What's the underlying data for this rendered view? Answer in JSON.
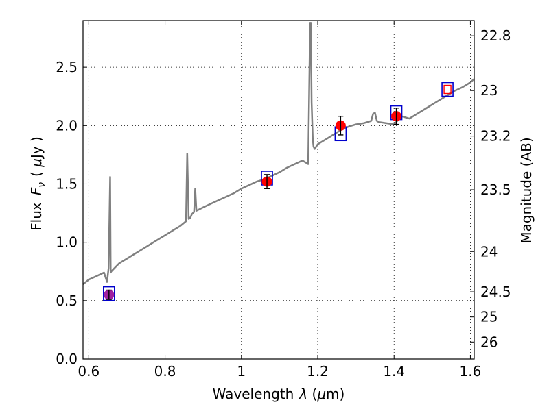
{
  "chart_data": {
    "type": "line",
    "xlabel": "Wavelength",
    "xlabel_symbol": "λ",
    "xlabel_unit_open": " (",
    "xlabel_unit_mu": "μ",
    "xlabel_unit_rest": "m)",
    "ylabel_text": "Flux",
    "ylabel_symbol": "F",
    "ylabel_subscript": "ν",
    "ylabel_unit_open": "( ",
    "ylabel_unit_mu": "μ",
    "ylabel_unit_rest": "Jy )",
    "y2label": "Magnitude (AB)",
    "xlim": [
      0.585,
      1.61
    ],
    "ylim": [
      0.0,
      2.9
    ],
    "x_ticks": [
      0.6,
      0.8,
      1.0,
      1.2,
      1.4,
      1.6
    ],
    "x_tick_labels": [
      "0.6",
      "0.8",
      "1",
      "1.2",
      "1.4",
      "1.6"
    ],
    "y_ticks": [
      0.0,
      0.5,
      1.0,
      1.5,
      2.0,
      2.5
    ],
    "y_tick_labels": [
      "0.0",
      "0.5",
      "1.0",
      "1.5",
      "2.0",
      "2.5"
    ],
    "y2_ticks": [
      {
        "label": "22.8",
        "flux": 2.77
      },
      {
        "label": "23",
        "flux": 2.3
      },
      {
        "label": "23.2",
        "flux": 1.91
      },
      {
        "label": "23.5",
        "flux": 1.45
      },
      {
        "label": "24",
        "flux": 0.92
      },
      {
        "label": "24.5",
        "flux": 0.575
      },
      {
        "label": "25",
        "flux": 0.36
      },
      {
        "label": "26",
        "flux": 0.145
      }
    ],
    "grid": true,
    "series": [
      {
        "kind": "model_spectrum",
        "color": "#808080",
        "x": [
          0.585,
          0.6,
          0.62,
          0.64,
          0.648,
          0.652,
          0.656,
          0.6575,
          0.659,
          0.665,
          0.68,
          0.7,
          0.72,
          0.74,
          0.76,
          0.78,
          0.8,
          0.82,
          0.84,
          0.855,
          0.858,
          0.862,
          0.866,
          0.87,
          0.876,
          0.879,
          0.882,
          0.888,
          0.9,
          0.92,
          0.94,
          0.96,
          0.98,
          1.0,
          1.02,
          1.04,
          1.06,
          1.08,
          1.1,
          1.12,
          1.14,
          1.16,
          1.175,
          1.18,
          1.182,
          1.184,
          1.187,
          1.189,
          1.192,
          1.2,
          1.22,
          1.24,
          1.26,
          1.28,
          1.3,
          1.32,
          1.34,
          1.345,
          1.35,
          1.355,
          1.36,
          1.38,
          1.4,
          1.42,
          1.44,
          1.46,
          1.48,
          1.5,
          1.52,
          1.54,
          1.56,
          1.58,
          1.6,
          1.61
        ],
        "y": [
          0.64,
          0.68,
          0.71,
          0.74,
          0.66,
          0.78,
          1.56,
          0.74,
          0.75,
          0.77,
          0.82,
          0.86,
          0.9,
          0.94,
          0.98,
          1.02,
          1.06,
          1.1,
          1.14,
          1.18,
          1.76,
          1.2,
          1.21,
          1.24,
          1.26,
          1.46,
          1.27,
          1.28,
          1.3,
          1.33,
          1.36,
          1.39,
          1.42,
          1.46,
          1.49,
          1.52,
          1.54,
          1.57,
          1.6,
          1.64,
          1.67,
          1.7,
          1.67,
          2.88,
          2.88,
          2.2,
          1.88,
          1.82,
          1.8,
          1.84,
          1.88,
          1.92,
          1.96,
          1.99,
          2.01,
          2.02,
          2.04,
          2.1,
          2.11,
          2.04,
          2.03,
          2.02,
          2.01,
          2.08,
          2.06,
          2.1,
          2.14,
          2.18,
          2.22,
          2.26,
          2.3,
          2.33,
          2.37,
          2.4
        ]
      },
      {
        "kind": "model_photometry",
        "marker": "square",
        "color": "#0000cc",
        "x": [
          0.653,
          1.067,
          1.26,
          1.406,
          1.54
        ],
        "y": [
          0.56,
          1.55,
          1.93,
          2.11,
          2.31
        ]
      },
      {
        "kind": "observed_photometry",
        "marker": "circle",
        "color": "#ff0000",
        "x": [
          0.653,
          1.067,
          1.26,
          1.406
        ],
        "y": [
          0.55,
          1.52,
          2.0,
          2.08
        ],
        "err": [
          0.04,
          0.06,
          0.08,
          0.07
        ],
        "point_colors": [
          "#a020a0",
          "#ff0000",
          "#ff0000",
          "#ff0000"
        ]
      },
      {
        "kind": "upper_point",
        "marker": "open-square",
        "color": "#ff0000",
        "x": [
          1.54
        ],
        "y": [
          2.31
        ]
      }
    ]
  }
}
